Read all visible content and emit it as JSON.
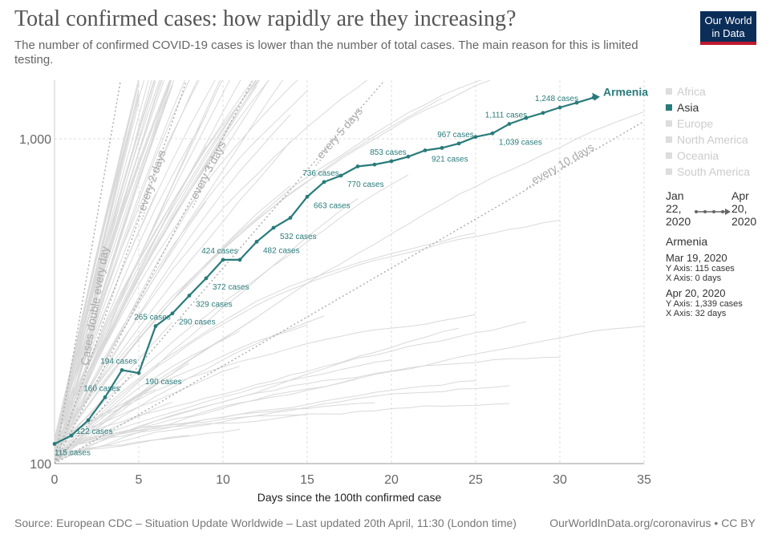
{
  "title": "Total confirmed cases: how rapidly are they increasing?",
  "subtitle": "The number of confirmed COVID-19 cases is lower than the number of total cases. The main reason for this is limited testing.",
  "logo": {
    "line1": "Our World",
    "line2": "in Data",
    "bg": "#0b2e59",
    "accent": "#c0182f"
  },
  "legend": [
    {
      "label": "Africa",
      "active": false
    },
    {
      "label": "Asia",
      "active": true
    },
    {
      "label": "Europe",
      "active": false
    },
    {
      "label": "North America",
      "active": false
    },
    {
      "label": "Oceania",
      "active": false
    },
    {
      "label": "South America",
      "active": false
    }
  ],
  "timeline": {
    "start": "Jan 22, 2020",
    "end": "Apr 20, 2020"
  },
  "info": {
    "country": "Armenia",
    "first": {
      "date": "Mar 19, 2020",
      "y": "Y Axis: 115 cases",
      "x": "X Axis: 0 days"
    },
    "last": {
      "date": "Apr 20, 2020",
      "y": "Y Axis: 1,339 cases",
      "x": "X Axis: 32 days"
    }
  },
  "footer": {
    "source": "Source: European CDC – Situation Update Worldwide – Last updated 20th April, 11:30 (London time)",
    "license": "OurWorldInData.org/coronavirus • CC BY"
  },
  "chart_data": {
    "type": "line",
    "xlabel": "Days since the 100th confirmed case",
    "ylabel": "",
    "xlim": [
      0,
      35
    ],
    "ylim": [
      100,
      1500
    ],
    "yscale": "log",
    "x_ticks": [
      0,
      5,
      10,
      15,
      20,
      25,
      30,
      35
    ],
    "y_ticks": [
      {
        "value": 100,
        "label": "100"
      },
      {
        "value": 1000,
        "label": "1,000"
      }
    ],
    "grid": true,
    "highlight_color": "#2a7b7b",
    "background_color": "#d9d9d9",
    "reference_lines": [
      {
        "label": "Cases double every day",
        "doubling_days": 1
      },
      {
        "label": "...every 2 days",
        "doubling_days": 2
      },
      {
        "label": "...every 3 days",
        "doubling_days": 3
      },
      {
        "label": "...every 5 days",
        "doubling_days": 5
      },
      {
        "label": "...every 10 days",
        "doubling_days": 10
      }
    ],
    "series": [
      {
        "name": "Armenia",
        "x": [
          0,
          1,
          2,
          3,
          4,
          5,
          6,
          7,
          8,
          9,
          10,
          11,
          12,
          13,
          14,
          15,
          16,
          17,
          18,
          19,
          20,
          21,
          22,
          23,
          24,
          25,
          26,
          27,
          28,
          29,
          30,
          31,
          32
        ],
        "values": [
          115,
          122,
          136,
          160,
          194,
          190,
          265,
          290,
          329,
          372,
          424,
          424,
          482,
          532,
          571,
          663,
          736,
          770,
          822,
          833,
          853,
          881,
          921,
          937,
          967,
          1013,
          1039,
          1111,
          1159,
          1201,
          1248,
          1291,
          1339
        ]
      }
    ],
    "annotations": [
      {
        "x": 0,
        "y": 115,
        "text": "115 cases"
      },
      {
        "x": 1,
        "y": 122,
        "text": "122 cases"
      },
      {
        "x": 3,
        "y": 160,
        "text": "160 cases"
      },
      {
        "x": 4,
        "y": 194,
        "text": "194 cases"
      },
      {
        "x": 5,
        "y": 190,
        "text": "190 cases"
      },
      {
        "x": 6,
        "y": 265,
        "text": "265 cases"
      },
      {
        "x": 7,
        "y": 290,
        "text": "290 cases"
      },
      {
        "x": 8,
        "y": 329,
        "text": "329 cases"
      },
      {
        "x": 9,
        "y": 372,
        "text": "372 cases"
      },
      {
        "x": 10,
        "y": 424,
        "text": "424 cases"
      },
      {
        "x": 12,
        "y": 482,
        "text": "482 cases"
      },
      {
        "x": 13,
        "y": 532,
        "text": "532 cases"
      },
      {
        "x": 15,
        "y": 663,
        "text": "663 cases"
      },
      {
        "x": 16,
        "y": 736,
        "text": "736 cases"
      },
      {
        "x": 17,
        "y": 770,
        "text": "770 cases"
      },
      {
        "x": 20,
        "y": 853,
        "text": "853 cases"
      },
      {
        "x": 22,
        "y": 921,
        "text": "921 cases"
      },
      {
        "x": 24,
        "y": 967,
        "text": "967 cases"
      },
      {
        "x": 26,
        "y": 1039,
        "text": "1,039 cases"
      },
      {
        "x": 27,
        "y": 1111,
        "text": "1,111 cases"
      },
      {
        "x": 30,
        "y": 1248,
        "text": "1,248 cases"
      }
    ],
    "end_label": "Armenia"
  }
}
